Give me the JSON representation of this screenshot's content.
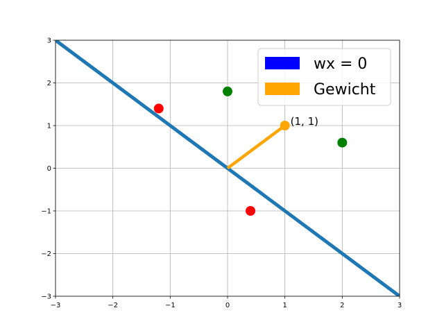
{
  "chart_data": {
    "type": "scatter",
    "title": "",
    "xlabel": "",
    "ylabel": "",
    "xlim": [
      -3,
      3
    ],
    "ylim": [
      -3,
      3
    ],
    "grid": true,
    "xticks": [
      -3,
      -2,
      -1,
      0,
      1,
      2,
      3
    ],
    "yticks": [
      -3,
      -2,
      -1,
      0,
      1,
      2,
      3
    ],
    "xtick_labels": [
      "−3",
      "−2",
      "−1",
      "0",
      "1",
      "2",
      "3"
    ],
    "ytick_labels": [
      "−3",
      "−2",
      "−1",
      "0",
      "1",
      "2",
      "3"
    ],
    "lines": [
      {
        "name": "wx = 0",
        "color": "#1f77b4",
        "x": [
          -3,
          3
        ],
        "y": [
          3,
          -3
        ]
      },
      {
        "name": "Gewicht",
        "color": "#ffa500",
        "x": [
          0,
          1
        ],
        "y": [
          0,
          1
        ]
      }
    ],
    "points": [
      {
        "x": -1.2,
        "y": 1.4,
        "color": "#ff0000"
      },
      {
        "x": 0.4,
        "y": -1.0,
        "color": "#ff0000"
      },
      {
        "x": 0.0,
        "y": 1.8,
        "color": "#008000"
      },
      {
        "x": 2.0,
        "y": 0.6,
        "color": "#008000"
      },
      {
        "x": 1.0,
        "y": 1.0,
        "color": "#ffa500"
      }
    ],
    "annotations": [
      {
        "text": "(1, 1)",
        "x": 1.0,
        "y": 1.0
      }
    ],
    "legend": {
      "placement": "top-right",
      "entries": [
        {
          "label": "wx = 0",
          "color": "#0000ff"
        },
        {
          "label": "Gewicht",
          "color": "#ffa500"
        }
      ]
    }
  }
}
